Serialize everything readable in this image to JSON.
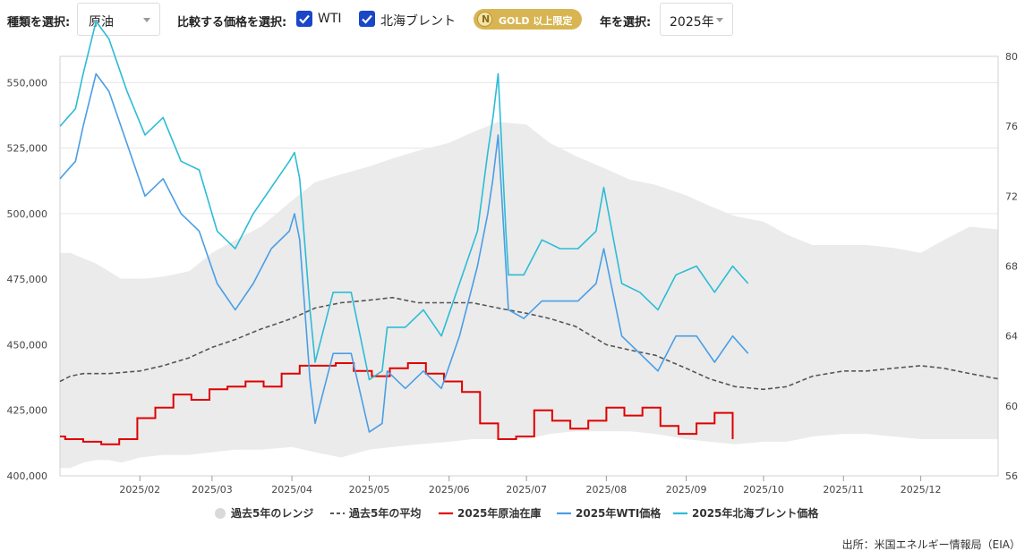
{
  "controls": {
    "type_label": "種類を選択:",
    "type_value": "原油",
    "compare_label": "比較する価格を選択:",
    "wti_label": "WTI",
    "brent_label": "北海ブレント",
    "gold_badge": "GOLD 以上限定",
    "gold_icon": "N",
    "year_label": "年を選択:",
    "year_value": "2025年"
  },
  "source": "出所：米国エネルギー情報局（EIA）",
  "colors": {
    "range": "#ebebeb",
    "avg": "#555555",
    "inventory": "#e00000",
    "wti": "#4a9ee6",
    "brent": "#2cbcd6",
    "checkbox": "#1a46c8",
    "gold": "#d8b552"
  },
  "chart_data": {
    "type": "line",
    "x_axis": {
      "ticks": [
        "2025/02",
        "2025/03",
        "2025/04",
        "2025/05",
        "2025/06",
        "2025/07",
        "2025/08",
        "2025/09",
        "2025/10",
        "2025/11",
        "2025/12"
      ],
      "range": [
        "2025-01-01",
        "2025-12-31"
      ]
    },
    "y_left": {
      "ticks": [
        "400,000",
        "425,000",
        "450,000",
        "475,000",
        "500,000",
        "525,000",
        "550,000"
      ],
      "range": [
        400000,
        560000
      ]
    },
    "y_right": {
      "ticks": [
        "56",
        "60",
        "64",
        "68",
        "72",
        "76",
        "80"
      ],
      "range": [
        56,
        80
      ]
    },
    "legend": [
      "過去5年のレンジ",
      "過去5年の平均",
      "2025年原油在庫",
      "2025年WTI価格",
      "2025年北海ブレント価格"
    ],
    "legend_position": "bottom",
    "series": [
      {
        "name": "過去5年のレンジ",
        "kind": "range",
        "axis": "left",
        "x": [
          "01-01",
          "01-05",
          "01-10",
          "01-15",
          "01-20",
          "01-25",
          "02-01",
          "02-10",
          "02-20",
          "03-01",
          "03-10",
          "03-20",
          "04-01",
          "04-10",
          "04-20",
          "05-01",
          "05-10",
          "05-20",
          "06-01",
          "06-10",
          "06-20",
          "07-01",
          "07-10",
          "07-20",
          "08-01",
          "08-10",
          "08-20",
          "09-01",
          "09-10",
          "09-20",
          "10-01",
          "10-10",
          "10-20",
          "11-01",
          "11-10",
          "11-20",
          "12-01",
          "12-10",
          "12-20",
          "12-31"
        ],
        "low": [
          403000,
          403000,
          405000,
          406000,
          406000,
          405000,
          407000,
          408000,
          408000,
          409000,
          410000,
          410000,
          411000,
          409000,
          407000,
          410000,
          411000,
          412000,
          413000,
          414000,
          414000,
          414000,
          416000,
          417000,
          417000,
          417000,
          416000,
          414000,
          413000,
          412000,
          413000,
          413000,
          415000,
          416000,
          416000,
          415000,
          414000,
          414000,
          414000,
          414000
        ],
        "high": [
          485000,
          485000,
          483000,
          481000,
          478000,
          475000,
          475000,
          476000,
          478000,
          485000,
          490000,
          495000,
          505000,
          512000,
          515000,
          518000,
          521000,
          524000,
          527000,
          531000,
          535000,
          534000,
          527000,
          522000,
          517000,
          513000,
          511000,
          507000,
          503000,
          499000,
          497000,
          492000,
          488000,
          488000,
          488000,
          487000,
          485000,
          490000,
          495000,
          494000
        ]
      },
      {
        "name": "過去5年の平均",
        "kind": "dashed",
        "axis": "left",
        "x": [
          "01-01",
          "01-05",
          "01-10",
          "01-20",
          "02-01",
          "02-10",
          "02-20",
          "03-01",
          "03-10",
          "03-20",
          "04-01",
          "04-10",
          "04-20",
          "05-01",
          "05-10",
          "05-20",
          "06-01",
          "06-10",
          "06-20",
          "07-01",
          "07-10",
          "07-20",
          "08-01",
          "08-10",
          "08-20",
          "09-01",
          "09-10",
          "09-20",
          "10-01",
          "10-10",
          "10-20",
          "11-01",
          "11-10",
          "11-20",
          "12-01",
          "12-10",
          "12-20",
          "12-31"
        ],
        "y": [
          436000,
          438000,
          439000,
          439000,
          440000,
          442000,
          445000,
          449000,
          452000,
          456000,
          460000,
          464000,
          466000,
          467000,
          468000,
          466000,
          466000,
          466000,
          464000,
          462000,
          460000,
          457000,
          450000,
          448000,
          446000,
          441000,
          437000,
          434000,
          433000,
          434000,
          438000,
          440000,
          440000,
          441000,
          442000,
          441000,
          439000,
          437000
        ]
      },
      {
        "name": "2025年原油在庫",
        "kind": "step",
        "axis": "left",
        "x": [
          "01-01",
          "01-03",
          "01-10",
          "01-17",
          "01-24",
          "01-31",
          "02-07",
          "02-14",
          "02-21",
          "02-28",
          "03-07",
          "03-14",
          "03-21",
          "03-28",
          "04-04",
          "04-11",
          "04-18",
          "04-25",
          "05-02",
          "05-09",
          "05-16",
          "05-23",
          "05-30",
          "06-06",
          "06-13",
          "06-20",
          "06-27",
          "07-04",
          "07-11",
          "07-18",
          "07-25",
          "08-01",
          "08-08",
          "08-15",
          "08-22",
          "08-29",
          "09-05",
          "09-12",
          "09-19"
        ],
        "y": [
          415000,
          414000,
          413000,
          412000,
          414000,
          422000,
          426000,
          431000,
          429000,
          433000,
          434000,
          436000,
          434000,
          439000,
          442000,
          442000,
          443000,
          440000,
          438000,
          441000,
          443000,
          439000,
          436000,
          432000,
          420000,
          414000,
          415000,
          425000,
          421000,
          418000,
          421000,
          426000,
          423000,
          426000,
          419000,
          416000,
          420000,
          424000,
          414000
        ]
      },
      {
        "name": "2025年WTI価格",
        "kind": "line",
        "axis": "right",
        "x": [
          "01-01",
          "01-07",
          "01-10",
          "01-15",
          "01-20",
          "01-27",
          "02-03",
          "02-10",
          "02-17",
          "02-24",
          "03-03",
          "03-10",
          "03-17",
          "03-24",
          "03-31",
          "04-02",
          "04-04",
          "04-08",
          "04-10",
          "04-17",
          "04-24",
          "05-01",
          "05-06",
          "05-08",
          "05-15",
          "05-22",
          "05-29",
          "06-05",
          "06-12",
          "06-16",
          "06-18",
          "06-20",
          "06-23",
          "06-24",
          "06-30",
          "07-07",
          "07-14",
          "07-21",
          "07-28",
          "07-31",
          "08-07",
          "08-14",
          "08-21",
          "08-28",
          "09-05",
          "09-12",
          "09-19",
          "09-25"
        ],
        "y": [
          73,
          74,
          76,
          79,
          78,
          75,
          72,
          73,
          71,
          70,
          67,
          65.5,
          67,
          69,
          70,
          71,
          69.5,
          61.5,
          59,
          63,
          63,
          58.5,
          59,
          62,
          61,
          62,
          61,
          64,
          68,
          71,
          73,
          75.5,
          68,
          65.5,
          65,
          66,
          66,
          66,
          67,
          69,
          64,
          63,
          62,
          64,
          64,
          62.5,
          64,
          63
        ]
      },
      {
        "name": "2025年北海ブレント価格",
        "kind": "line",
        "axis": "right",
        "x": [
          "01-01",
          "01-07",
          "01-10",
          "01-15",
          "01-20",
          "01-27",
          "02-03",
          "02-10",
          "02-17",
          "02-24",
          "03-03",
          "03-10",
          "03-17",
          "03-24",
          "03-31",
          "04-02",
          "04-04",
          "04-08",
          "04-10",
          "04-17",
          "04-24",
          "05-01",
          "05-06",
          "05-08",
          "05-15",
          "05-22",
          "05-29",
          "06-05",
          "06-12",
          "06-16",
          "06-18",
          "06-20",
          "06-23",
          "06-24",
          "06-30",
          "07-07",
          "07-14",
          "07-21",
          "07-28",
          "07-31",
          "08-07",
          "08-14",
          "08-21",
          "08-28",
          "09-05",
          "09-12",
          "09-19",
          "09-25"
        ],
        "y": [
          76,
          77,
          79,
          82,
          81,
          78,
          75.5,
          76.5,
          74,
          73.5,
          70,
          69,
          71,
          72.5,
          74,
          74.5,
          73,
          65.5,
          62.5,
          66.5,
          66.5,
          61.5,
          62,
          64.5,
          64.5,
          65.5,
          64,
          67,
          70,
          74.5,
          76.5,
          79,
          70,
          67.5,
          67.5,
          69.5,
          69,
          69,
          70,
          72.5,
          67,
          66.5,
          65.5,
          67.5,
          68,
          66.5,
          68,
          67
        ]
      }
    ]
  }
}
